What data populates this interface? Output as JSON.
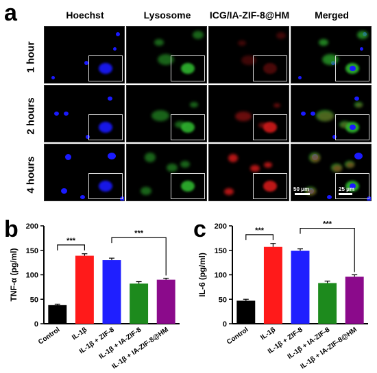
{
  "panel_labels": {
    "a": "a",
    "b": "b",
    "c": "c"
  },
  "columns": [
    "Hoechst",
    "Lysosome",
    "ICG/IA-ZIF-8@HM",
    "Merged"
  ],
  "rows": [
    "1 hour",
    "2 hours",
    "4 hours"
  ],
  "scale_bars": {
    "main": "50 μm",
    "inset": "25 μm"
  },
  "colors": {
    "hoechst": "#1a1aff",
    "lysosome": "#2fb52f",
    "icg": "#d21a1a",
    "black": "#000000",
    "red": "#ff1a1a",
    "blue": "#1f1fff",
    "green": "#1d8a1d",
    "purple": "#8b0a8b"
  },
  "chart_data": [
    {
      "type": "bar",
      "categories": [
        "Control",
        "IL-1β",
        "IL-1β + ZIF-8",
        "IL-1β + IA-ZIF-8",
        "IL-1β + IA-ZIF-8@HM"
      ],
      "values": [
        38,
        139,
        130,
        82,
        90
      ],
      "errors": [
        2,
        4,
        4,
        4,
        3
      ],
      "colors": [
        "#000000",
        "#ff1a1a",
        "#1f1fff",
        "#1d8a1d",
        "#8b0a8b"
      ],
      "ylabel": "TNF-α (pg/ml)",
      "ylim": [
        0,
        200
      ],
      "yticks": [
        0,
        50,
        100,
        150,
        200
      ],
      "significance": [
        {
          "from": 0,
          "to": 1,
          "label": "***"
        },
        {
          "from": 2,
          "to": 4,
          "label": "***"
        }
      ]
    },
    {
      "type": "bar",
      "categories": [
        "Control",
        "IL-1β",
        "IL-1β + ZIF-8",
        "IL-1β + IA-ZIF-8",
        "IL-1β + IA-ZIF-8@HM"
      ],
      "values": [
        47,
        157,
        149,
        83,
        96
      ],
      "errors": [
        3,
        7,
        4,
        4,
        4
      ],
      "colors": [
        "#000000",
        "#ff1a1a",
        "#1f1fff",
        "#1d8a1d",
        "#8b0a8b"
      ],
      "ylabel": "IL-6 (pg/ml)",
      "ylim": [
        0,
        200
      ],
      "yticks": [
        0,
        50,
        100,
        150,
        200
      ],
      "significance": [
        {
          "from": 0,
          "to": 1,
          "label": "***"
        },
        {
          "from": 2,
          "to": 4,
          "label": "***"
        }
      ]
    }
  ]
}
